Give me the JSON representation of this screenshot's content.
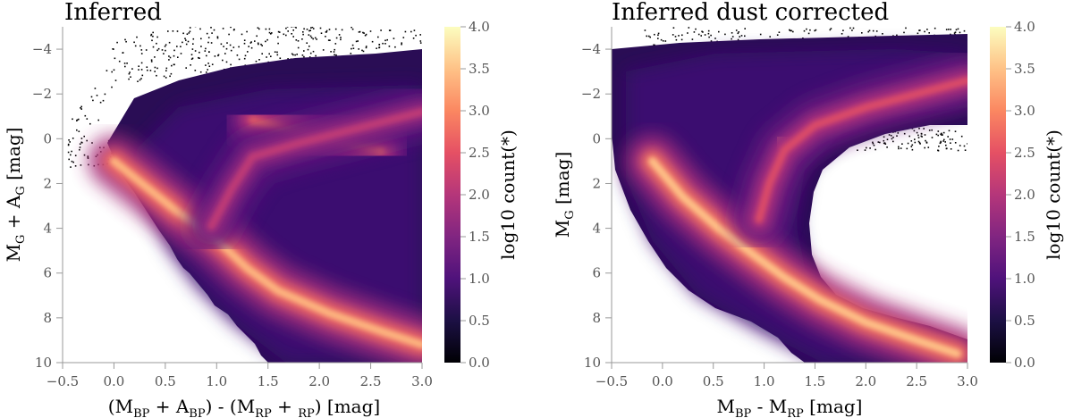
{
  "chart_data": [
    {
      "type": "heatmap",
      "title": "Inferred",
      "xlabel": "(M_BP + A_BP) - (M_RP + _RP) [mag]",
      "ylabel": "M_G + A_G [mag]",
      "xlim": [
        -0.5,
        3.0
      ],
      "ylim": [
        10,
        -5
      ],
      "xticks": [
        "−0.5",
        "0.0",
        "0.5",
        "1.0",
        "1.5",
        "2.0",
        "2.5",
        "3.0"
      ],
      "xtick_values": [
        -0.5,
        0.0,
        0.5,
        1.0,
        1.5,
        2.0,
        2.5,
        3.0
      ],
      "yticks": [
        "−4",
        "−2",
        "0",
        "2",
        "4",
        "6",
        "8",
        "10"
      ],
      "ytick_values": [
        -4,
        -2,
        0,
        2,
        4,
        6,
        8,
        10
      ],
      "colorbar": {
        "label": "log10 count(*)",
        "range": [
          0.0,
          4.0
        ],
        "ticks": [
          "0.0",
          "0.5",
          "1.0",
          "1.5",
          "2.0",
          "2.5",
          "3.0",
          "3.5",
          "4.0"
        ],
        "tick_values": [
          0.0,
          0.5,
          1.0,
          1.5,
          2.0,
          2.5,
          3.0,
          3.5,
          4.0
        ]
      },
      "features": [
        {
          "name": "main-sequence",
          "points": [
            [
              0.0,
              1.0
            ],
            [
              0.6,
              3.2
            ],
            [
              0.95,
              4.3
            ],
            [
              1.3,
              5.8
            ],
            [
              1.6,
              6.8
            ],
            [
              2.1,
              7.8
            ],
            [
              2.6,
              8.6
            ],
            [
              3.0,
              9.2
            ]
          ],
          "level": 3.4
        },
        {
          "name": "red-clump",
          "points": [
            [
              1.35,
              -0.8
            ],
            [
              1.7,
              -0.4
            ],
            [
              2.1,
              0.0
            ],
            [
              2.6,
              0.5
            ]
          ],
          "level": 2.7
        },
        {
          "name": "giant-branch",
          "points": [
            [
              0.95,
              3.9
            ],
            [
              1.15,
              2.2
            ],
            [
              1.35,
              0.8
            ],
            [
              1.8,
              0.2
            ],
            [
              2.4,
              -0.5
            ],
            [
              3.0,
              -1.2
            ]
          ],
          "level": 2.1
        }
      ]
    },
    {
      "type": "heatmap",
      "title": "Inferred dust corrected",
      "xlabel": "M_BP - M_RP [mag]",
      "ylabel": "M_G [mag]",
      "xlim": [
        -0.5,
        3.0
      ],
      "ylim": [
        10,
        -5
      ],
      "xticks": [
        "−0.5",
        "0.0",
        "0.5",
        "1.0",
        "1.5",
        "2.0",
        "2.5",
        "3.0"
      ],
      "xtick_values": [
        -0.5,
        0.0,
        0.5,
        1.0,
        1.5,
        2.0,
        2.5,
        3.0
      ],
      "yticks": [
        "−4",
        "−2",
        "0",
        "2",
        "4",
        "6",
        "8",
        "10"
      ],
      "ytick_values": [
        -4,
        -2,
        0,
        2,
        4,
        6,
        8,
        10
      ],
      "colorbar": {
        "label": "log10 count(*)",
        "range": [
          0.0,
          4.0
        ],
        "ticks": [
          "0.0",
          "0.5",
          "1.0",
          "1.5",
          "2.0",
          "2.5",
          "3.0",
          "3.5",
          "4.0"
        ],
        "tick_values": [
          0.0,
          0.5,
          1.0,
          1.5,
          2.0,
          2.5,
          3.0,
          3.5,
          4.0
        ]
      },
      "features": [
        {
          "name": "main-sequence",
          "points": [
            [
              -0.1,
              1.0
            ],
            [
              0.2,
              2.6
            ],
            [
              0.55,
              4.0
            ],
            [
              0.9,
              5.2
            ],
            [
              1.2,
              6.2
            ],
            [
              1.55,
              7.2
            ],
            [
              2.0,
              8.2
            ],
            [
              2.5,
              9.0
            ],
            [
              2.9,
              9.6
            ]
          ],
          "level": 3.5
        },
        {
          "name": "red-clump",
          "points": [
            [
              1.15,
              0.0
            ],
            [
              1.25,
              0.4
            ]
          ],
          "level": 3.4
        },
        {
          "name": "giant-branch",
          "points": [
            [
              0.95,
              3.6
            ],
            [
              1.05,
              2.0
            ],
            [
              1.2,
              0.5
            ],
            [
              1.5,
              -0.6
            ],
            [
              2.0,
              -1.4
            ],
            [
              2.5,
              -2.0
            ],
            [
              3.0,
              -2.6
            ]
          ],
          "level": 2.4
        }
      ]
    }
  ]
}
